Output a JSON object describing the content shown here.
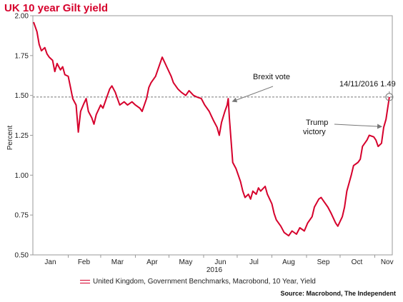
{
  "title": "UK 10 year Gilt yield",
  "chart_data": {
    "type": "line",
    "ylabel": "Percent",
    "xlabel_year": "2016",
    "ylim": [
      0.5,
      2.0
    ],
    "yticks": [
      0.5,
      0.75,
      1.0,
      1.25,
      1.5,
      1.75,
      2.0
    ],
    "ytick_labels": [
      "0.50",
      "0.75",
      "1.00",
      "1.25",
      "1.50",
      "1.75",
      "2.00"
    ],
    "x_range": [
      "2016-01-01",
      "2016-11-16"
    ],
    "month_labels": [
      {
        "label": "Jan",
        "date": "2016-01-16"
      },
      {
        "label": "Feb",
        "date": "2016-02-15"
      },
      {
        "label": "Mar",
        "date": "2016-03-16"
      },
      {
        "label": "Apr",
        "date": "2016-04-16"
      },
      {
        "label": "May",
        "date": "2016-05-16"
      },
      {
        "label": "Jun",
        "date": "2016-06-16"
      },
      {
        "label": "Jul",
        "date": "2016-07-16"
      },
      {
        "label": "Aug",
        "date": "2016-08-16"
      },
      {
        "label": "Sep",
        "date": "2016-09-16"
      },
      {
        "label": "Oct",
        "date": "2016-10-16"
      },
      {
        "label": "Nov",
        "date": "2016-11-12"
      }
    ],
    "reference_line": {
      "y": 1.49
    },
    "series": [
      {
        "name": "United Kingdom, Government Benchmarks, Macrobond, 10 Year, Yield",
        "color": "#d6002c",
        "points": [
          [
            "2016-01-01",
            1.96
          ],
          [
            "2016-01-04",
            1.9
          ],
          [
            "2016-01-06",
            1.82
          ],
          [
            "2016-01-08",
            1.78
          ],
          [
            "2016-01-11",
            1.8
          ],
          [
            "2016-01-13",
            1.76
          ],
          [
            "2016-01-15",
            1.74
          ],
          [
            "2016-01-18",
            1.72
          ],
          [
            "2016-01-20",
            1.65
          ],
          [
            "2016-01-22",
            1.7
          ],
          [
            "2016-01-25",
            1.66
          ],
          [
            "2016-01-27",
            1.68
          ],
          [
            "2016-01-29",
            1.63
          ],
          [
            "2016-02-01",
            1.62
          ],
          [
            "2016-02-03",
            1.55
          ],
          [
            "2016-02-05",
            1.48
          ],
          [
            "2016-02-08",
            1.44
          ],
          [
            "2016-02-10",
            1.27
          ],
          [
            "2016-02-12",
            1.4
          ],
          [
            "2016-02-15",
            1.45
          ],
          [
            "2016-02-17",
            1.48
          ],
          [
            "2016-02-19",
            1.4
          ],
          [
            "2016-02-22",
            1.36
          ],
          [
            "2016-02-24",
            1.32
          ],
          [
            "2016-02-26",
            1.38
          ],
          [
            "2016-03-01",
            1.44
          ],
          [
            "2016-03-03",
            1.42
          ],
          [
            "2016-03-07",
            1.5
          ],
          [
            "2016-03-09",
            1.54
          ],
          [
            "2016-03-11",
            1.56
          ],
          [
            "2016-03-14",
            1.52
          ],
          [
            "2016-03-16",
            1.48
          ],
          [
            "2016-03-18",
            1.44
          ],
          [
            "2016-03-22",
            1.46
          ],
          [
            "2016-03-25",
            1.44
          ],
          [
            "2016-03-29",
            1.46
          ],
          [
            "2016-04-01",
            1.44
          ],
          [
            "2016-04-05",
            1.42
          ],
          [
            "2016-04-07",
            1.4
          ],
          [
            "2016-04-11",
            1.48
          ],
          [
            "2016-04-13",
            1.55
          ],
          [
            "2016-04-15",
            1.58
          ],
          [
            "2016-04-19",
            1.62
          ],
          [
            "2016-04-21",
            1.66
          ],
          [
            "2016-04-25",
            1.74
          ],
          [
            "2016-04-27",
            1.71
          ],
          [
            "2016-04-29",
            1.68
          ],
          [
            "2016-05-03",
            1.62
          ],
          [
            "2016-05-05",
            1.58
          ],
          [
            "2016-05-09",
            1.54
          ],
          [
            "2016-05-12",
            1.52
          ],
          [
            "2016-05-16",
            1.5
          ],
          [
            "2016-05-19",
            1.53
          ],
          [
            "2016-05-23",
            1.5
          ],
          [
            "2016-05-26",
            1.49
          ],
          [
            "2016-05-30",
            1.48
          ],
          [
            "2016-06-02",
            1.44
          ],
          [
            "2016-06-06",
            1.4
          ],
          [
            "2016-06-08",
            1.37
          ],
          [
            "2016-06-10",
            1.34
          ],
          [
            "2016-06-13",
            1.3
          ],
          [
            "2016-06-15",
            1.25
          ],
          [
            "2016-06-17",
            1.33
          ],
          [
            "2016-06-20",
            1.4
          ],
          [
            "2016-06-22",
            1.44
          ],
          [
            "2016-06-23",
            1.48
          ],
          [
            "2016-06-24",
            1.36
          ],
          [
            "2016-06-27",
            1.08
          ],
          [
            "2016-06-30",
            1.04
          ],
          [
            "2016-07-04",
            0.96
          ],
          [
            "2016-07-06",
            0.9
          ],
          [
            "2016-07-08",
            0.86
          ],
          [
            "2016-07-11",
            0.88
          ],
          [
            "2016-07-13",
            0.85
          ],
          [
            "2016-07-15",
            0.9
          ],
          [
            "2016-07-18",
            0.88
          ],
          [
            "2016-07-20",
            0.92
          ],
          [
            "2016-07-22",
            0.9
          ],
          [
            "2016-07-26",
            0.93
          ],
          [
            "2016-07-28",
            0.88
          ],
          [
            "2016-08-01",
            0.82
          ],
          [
            "2016-08-03",
            0.76
          ],
          [
            "2016-08-05",
            0.72
          ],
          [
            "2016-08-09",
            0.68
          ],
          [
            "2016-08-12",
            0.64
          ],
          [
            "2016-08-16",
            0.62
          ],
          [
            "2016-08-19",
            0.65
          ],
          [
            "2016-08-23",
            0.63
          ],
          [
            "2016-08-26",
            0.67
          ],
          [
            "2016-08-30",
            0.65
          ],
          [
            "2016-09-02",
            0.7
          ],
          [
            "2016-09-06",
            0.74
          ],
          [
            "2016-09-08",
            0.8
          ],
          [
            "2016-09-12",
            0.85
          ],
          [
            "2016-09-14",
            0.86
          ],
          [
            "2016-09-16",
            0.84
          ],
          [
            "2016-09-20",
            0.8
          ],
          [
            "2016-09-23",
            0.76
          ],
          [
            "2016-09-27",
            0.7
          ],
          [
            "2016-09-29",
            0.68
          ],
          [
            "2016-10-03",
            0.74
          ],
          [
            "2016-10-05",
            0.8
          ],
          [
            "2016-10-07",
            0.9
          ],
          [
            "2016-10-11",
            1.0
          ],
          [
            "2016-10-13",
            1.06
          ],
          [
            "2016-10-17",
            1.08
          ],
          [
            "2016-10-19",
            1.1
          ],
          [
            "2016-10-21",
            1.18
          ],
          [
            "2016-10-25",
            1.22
          ],
          [
            "2016-10-27",
            1.25
          ],
          [
            "2016-10-31",
            1.24
          ],
          [
            "2016-11-02",
            1.22
          ],
          [
            "2016-11-04",
            1.18
          ],
          [
            "2016-11-07",
            1.2
          ],
          [
            "2016-11-09",
            1.3
          ],
          [
            "2016-11-11",
            1.35
          ],
          [
            "2016-11-14",
            1.49
          ]
        ]
      }
    ],
    "annotations": [
      {
        "text": "Brexit vote",
        "date": "2016-06-23",
        "value": 1.48
      },
      {
        "text_lines": [
          "Trump",
          "victory"
        ],
        "date": "2016-11-09",
        "value": 1.3
      },
      {
        "text": "14/11/2016 1.49",
        "date": "2016-11-14",
        "value": 1.49
      }
    ]
  },
  "legend_text": "United Kingdom, Government Benchmarks, Macrobond, 10 Year, Yield",
  "source": "Source: Macrobond, The Independent"
}
